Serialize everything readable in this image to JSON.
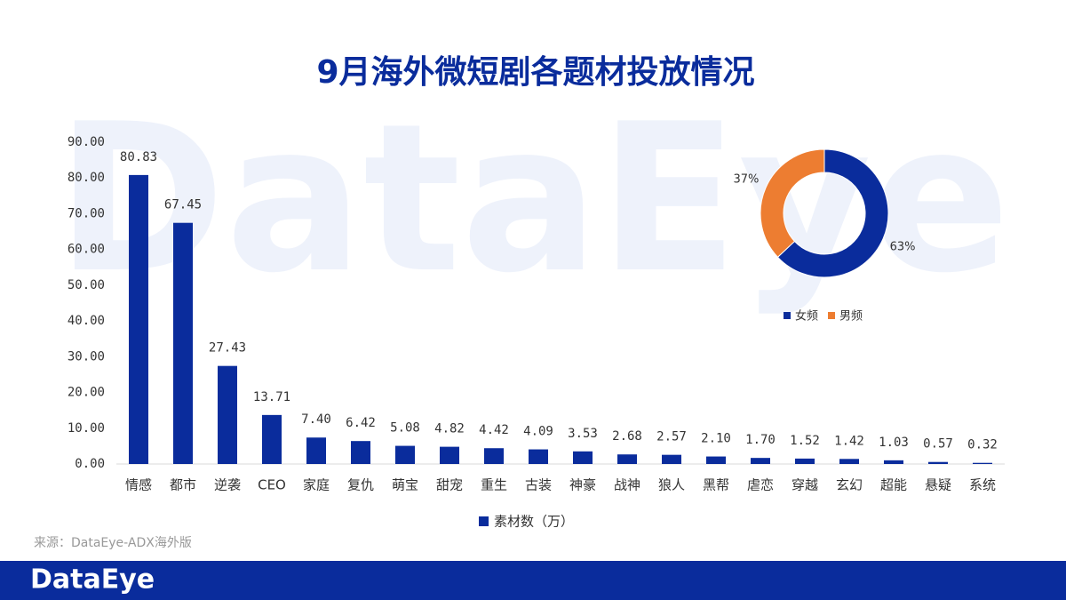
{
  "title": "9月海外微短剧各题材投放情况",
  "source": "来源：DataEye-ADX海外版",
  "brand": "DataEye",
  "chart_data": [
    {
      "type": "bar",
      "categories": [
        "情感",
        "都市",
        "逆袭",
        "CEO",
        "家庭",
        "复仇",
        "萌宝",
        "甜宠",
        "重生",
        "古装",
        "神豪",
        "战神",
        "狼人",
        "黑帮",
        "虐恋",
        "穿越",
        "玄幻",
        "超能",
        "悬疑",
        "系统"
      ],
      "series": [
        {
          "name": "素材数（万）",
          "color": "#0a2c9c",
          "values": [
            80.83,
            67.45,
            27.43,
            13.71,
            7.4,
            6.42,
            5.08,
            4.82,
            4.42,
            4.09,
            3.53,
            2.68,
            2.57,
            2.1,
            1.7,
            1.52,
            1.42,
            1.03,
            0.57,
            0.32
          ],
          "value_labels": [
            "80.83",
            "67.45",
            "27.43",
            "13.71",
            "7.40",
            "6.42",
            "5.08",
            "4.82",
            "4.42",
            "4.09",
            "3.53",
            "2.68",
            "2.57",
            "2.10",
            "1.70",
            "1.52",
            "1.42",
            "1.03",
            "0.57",
            "0.32"
          ]
        }
      ],
      "ylim": [
        0,
        90
      ],
      "yticks": [
        {
          "value": 0,
          "label": "0.00"
        },
        {
          "value": 10,
          "label": "10.00"
        },
        {
          "value": 20,
          "label": "20.00"
        },
        {
          "value": 30,
          "label": "30.00"
        },
        {
          "value": 40,
          "label": "40.00"
        },
        {
          "value": 50,
          "label": "50.00"
        },
        {
          "value": 60,
          "label": "60.00"
        },
        {
          "value": 70,
          "label": "70.00"
        },
        {
          "value": 80,
          "label": "80.00"
        },
        {
          "value": 90,
          "label": "90.00"
        }
      ],
      "legend": "bottom"
    },
    {
      "type": "donut",
      "categories": [
        "女频",
        "男频"
      ],
      "values": [
        63,
        37
      ],
      "value_labels": [
        "63%",
        "37%"
      ],
      "colors": [
        "#0a2c9c",
        "#ed7d31"
      ],
      "legend": "bottom"
    }
  ]
}
